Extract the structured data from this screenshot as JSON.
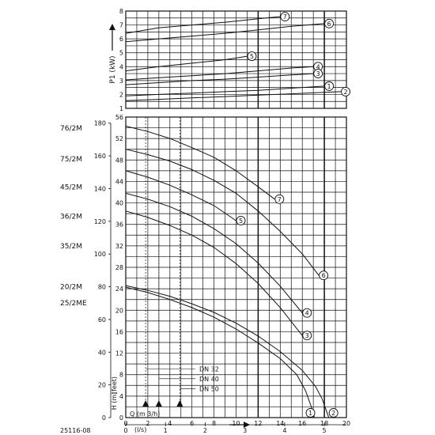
{
  "chart_data": [
    {
      "type": "line",
      "panel": "power",
      "ylabel": "P1 (kW)",
      "y_ticks": [
        1,
        2,
        3,
        4,
        5,
        6,
        7,
        8
      ],
      "ylim": [
        1,
        8
      ],
      "xlim": [
        0,
        20
      ],
      "series": [
        {
          "name": "7",
          "x": [
            0,
            3,
            6,
            9,
            12,
            14
          ],
          "y": [
            6.4,
            6.8,
            7.0,
            7.2,
            7.45,
            7.6
          ]
        },
        {
          "name": "6",
          "x": [
            0,
            3,
            6,
            9,
            12,
            15,
            18
          ],
          "y": [
            5.8,
            6.0,
            6.2,
            6.4,
            6.65,
            6.9,
            7.1
          ]
        },
        {
          "name": "5",
          "x": [
            0,
            3,
            6,
            9,
            11
          ],
          "y": [
            3.7,
            4.0,
            4.25,
            4.5,
            4.75
          ]
        },
        {
          "name": "4",
          "x": [
            0,
            3,
            6,
            9,
            12,
            15,
            17
          ],
          "y": [
            3.05,
            3.2,
            3.35,
            3.5,
            3.7,
            3.9,
            4.0
          ]
        },
        {
          "name": "3",
          "x": [
            0,
            3,
            6,
            9,
            12,
            15,
            17
          ],
          "y": [
            2.7,
            2.85,
            3.0,
            3.1,
            3.25,
            3.4,
            3.5
          ]
        },
        {
          "name": "1",
          "x": [
            0,
            3,
            6,
            9,
            12,
            15,
            18
          ],
          "y": [
            1.9,
            2.0,
            2.1,
            2.2,
            2.3,
            2.45,
            2.6
          ]
        },
        {
          "name": "2",
          "x": [
            0,
            3,
            6,
            9,
            12,
            15,
            18,
            19.5
          ],
          "y": [
            1.55,
            1.65,
            1.75,
            1.85,
            1.95,
            2.05,
            2.15,
            2.2
          ]
        }
      ]
    },
    {
      "type": "line",
      "panel": "head",
      "xlabel": "Q (m 3/h)",
      "ylabel": "H (m)",
      "ylabel2": "(feet)",
      "x_ticks": [
        0,
        2,
        4,
        6,
        8,
        10,
        12,
        14,
        16,
        18,
        20
      ],
      "xlim": [
        0,
        20
      ],
      "y_ticks_m": [
        0,
        4,
        8,
        12,
        16,
        20,
        24,
        28,
        32,
        36,
        40,
        44,
        48,
        52,
        56
      ],
      "y_ticks_feet": [
        0,
        20,
        40,
        60,
        80,
        100,
        120,
        140,
        160,
        180
      ],
      "ylim": [
        0,
        56
      ],
      "secondary_x_label": "(l/s)",
      "secondary_x_ticks": [
        0,
        1,
        2,
        3,
        4,
        5
      ],
      "model_labels": [
        {
          "text": "76/2M",
          "feet": 177
        },
        {
          "text": "75/2M",
          "feet": 158
        },
        {
          "text": "45/2M",
          "feet": 141
        },
        {
          "text": "36/2M",
          "feet": 123
        },
        {
          "text": "35/2M",
          "feet": 105
        },
        {
          "text": "20/2M",
          "feet": 80
        },
        {
          "text": "25/2ME",
          "feet": 70
        }
      ],
      "dn_lines": [
        {
          "label": "DN 32",
          "x": 1.8
        },
        {
          "label": "DN 40",
          "x": 3.0
        },
        {
          "label": "DN 50",
          "x": 4.9
        }
      ],
      "series": [
        {
          "name": "7",
          "x": [
            0,
            2,
            4,
            6,
            8,
            10,
            12,
            13.5
          ],
          "y": [
            54.3,
            53.3,
            52.0,
            50.3,
            48.5,
            46.0,
            43.0,
            40.7
          ]
        },
        {
          "name": "6",
          "x": [
            0,
            2,
            4,
            6,
            8,
            10,
            12,
            14,
            16,
            17.5
          ],
          "y": [
            50.0,
            49.0,
            47.8,
            46.2,
            44.2,
            41.8,
            38.5,
            34.7,
            30.5,
            26.5
          ]
        },
        {
          "name": "5",
          "x": [
            0,
            2,
            4,
            6,
            8,
            10
          ],
          "y": [
            46.0,
            44.8,
            43.3,
            41.5,
            39.5,
            36.7
          ]
        },
        {
          "name": "4",
          "x": [
            0,
            2,
            4,
            6,
            8,
            10,
            12,
            14,
            16
          ],
          "y": [
            41.8,
            40.7,
            39.3,
            37.5,
            35.2,
            32.4,
            28.8,
            24.5,
            19.5
          ]
        },
        {
          "name": "3",
          "x": [
            0,
            2,
            4,
            6,
            8,
            10,
            12,
            14,
            16
          ],
          "y": [
            38.5,
            37.3,
            35.8,
            34.0,
            31.7,
            28.7,
            25.0,
            20.5,
            15.3
          ]
        },
        {
          "name": "1",
          "x": [
            0,
            2,
            4,
            6,
            8,
            10,
            12,
            14,
            15.5,
            16.3,
            16.9,
            17.1
          ],
          "y": [
            24.3,
            23.3,
            22.0,
            20.5,
            18.7,
            16.5,
            13.9,
            11.0,
            8.0,
            5.0,
            1.5,
            0
          ]
        },
        {
          "name": "2",
          "x": [
            0,
            2,
            4,
            6,
            8,
            10,
            12,
            14,
            16,
            17.2,
            17.8,
            18.2,
            18.4
          ],
          "y": [
            24.6,
            23.7,
            22.6,
            21.2,
            19.6,
            17.6,
            15.2,
            12.3,
            8.8,
            5.8,
            3.5,
            1.2,
            0
          ]
        }
      ]
    }
  ],
  "figure_code": "25116-08"
}
